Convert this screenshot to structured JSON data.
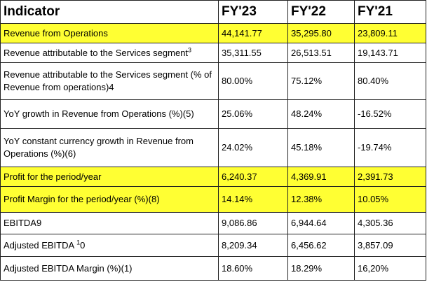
{
  "header": {
    "indicator": "Indicator",
    "fy23": "FY'23",
    "fy22": "FY'22",
    "fy21": "FY'21"
  },
  "highlight_color": "#ffff33",
  "rows": [
    {
      "label": "Revenue from Operations",
      "fy23": "44,141.77",
      "fy22": "35,295.80",
      "fy21": "23,809.11",
      "highlighted": true
    },
    {
      "label": "Revenue attributable to the Services segment",
      "label_sup": "3",
      "fy23": "35,311.55",
      "fy22": "26,513.51",
      "fy21": "19,143.71",
      "highlighted": false
    },
    {
      "label": "Revenue attributable to the Services segment (% of Revenue from operations)4",
      "fy23": "80.00%",
      "fy22": "75.12%",
      "fy21": "80.40%",
      "highlighted": false
    },
    {
      "label": "YoY growth in Revenue from Operations (%)(5)",
      "fy23": "25.06%",
      "fy22": "48.24%",
      "fy21": "-16.52%",
      "highlighted": false
    },
    {
      "label": "YoY constant currency growth in Revenue from Operations (%)(6)",
      "fy23": "24.02%",
      "fy22": "45.18%",
      "fy21": "-19.74%",
      "highlighted": false
    },
    {
      "label": "Profit for the period/year",
      "fy23": "6,240.37",
      "fy22": "4,369.91",
      "fy21": "2,391.73",
      "highlighted": true
    },
    {
      "label": "Profit Margin for the period/year (%)(8)",
      "fy23": "14.14%",
      "fy22": "12.38%",
      "fy21": "10.05%",
      "highlighted": true
    },
    {
      "label": "EBITDA9",
      "fy23": "9,086.86",
      "fy22": "6,944.64",
      "fy21": "4,305.36",
      "highlighted": false
    },
    {
      "label_pre": "Adjusted EBITDA ",
      "label_sup": "1",
      "label_post": "0",
      "fy23": "8,209.34",
      "fy22": "6,456.62",
      "fy21": "3,857.09",
      "highlighted": false
    },
    {
      "label": "Adjusted EBITDA Margin (%)(1)",
      "fy23": "18.60%",
      "fy22": "18.29%",
      "fy21": "16,20%",
      "highlighted": false
    }
  ]
}
